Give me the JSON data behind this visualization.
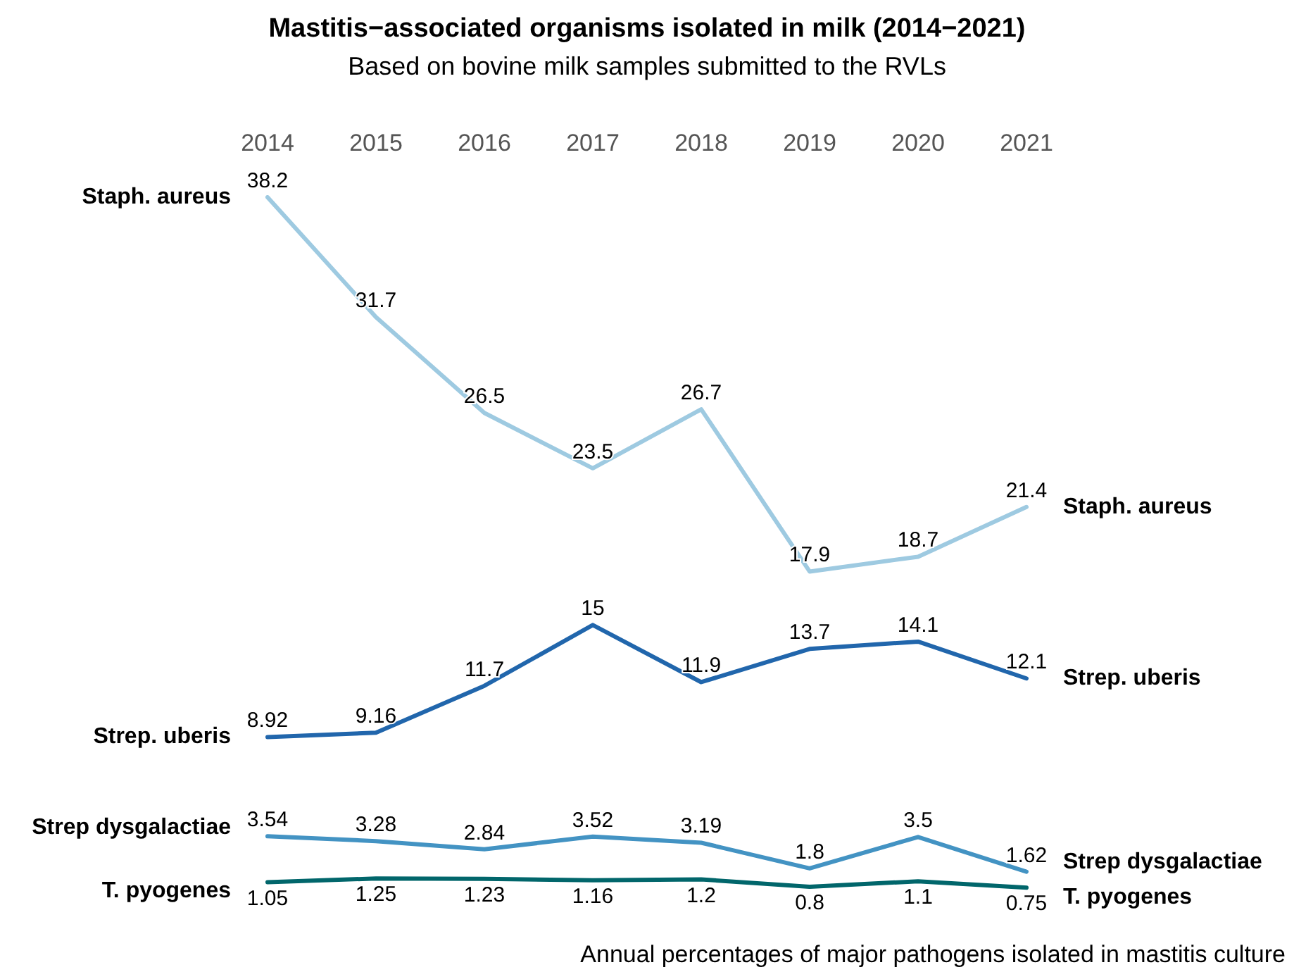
{
  "chart_data": {
    "type": "line",
    "title": "Mastitis−associated organisms isolated in milk (2014−2021)",
    "subtitle": "Based on bovine milk samples submitted to the RVLs",
    "annotations": [
      "Annual percentages of major pathogens isolated in mastitis culture"
    ],
    "categories": [
      "2014",
      "2015",
      "2016",
      "2017",
      "2018",
      "2019",
      "2020",
      "2021"
    ],
    "series": [
      {
        "name": "Staph. aureus",
        "color": "#9ecae1",
        "values": [
          38.2,
          31.7,
          26.5,
          23.5,
          26.7,
          17.9,
          18.7,
          21.4
        ]
      },
      {
        "name": "Strep. uberis",
        "color": "#2166ac",
        "values": [
          8.92,
          9.16,
          11.7,
          15,
          11.9,
          13.7,
          14.1,
          12.1
        ]
      },
      {
        "name": "Strep dysgalactiae",
        "color": "#4393c3",
        "values": [
          3.54,
          3.28,
          2.84,
          3.52,
          3.19,
          1.8,
          3.5,
          1.62
        ]
      },
      {
        "name": "T. pyogenes",
        "color": "#01666b",
        "values": [
          1.05,
          1.25,
          1.23,
          1.16,
          1.2,
          0.8,
          1.1,
          0.75
        ]
      }
    ],
    "data_labels": true,
    "legend": false,
    "grid": false,
    "marker": "none",
    "line_style": "solid"
  }
}
